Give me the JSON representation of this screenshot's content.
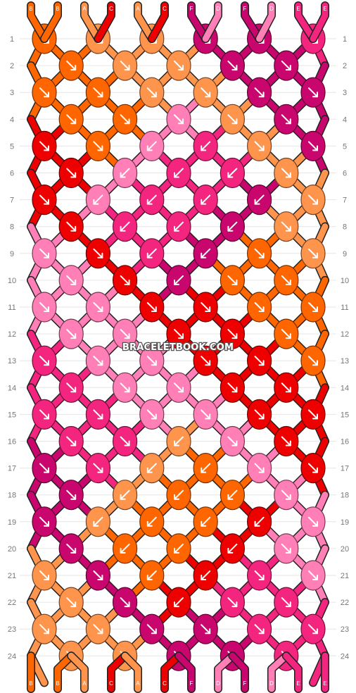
{
  "colors": {
    "B": "#ff6600",
    "A": "#ff944d",
    "C": "#ee0000",
    "D": "#ff7fb6",
    "E": "#f4257f",
    "F": "#c8066d"
  },
  "strands_top": [
    "B",
    "B",
    "A",
    "C",
    "A",
    "C",
    "F",
    "D",
    "F",
    "D",
    "E",
    "E"
  ],
  "strands_bottom": [
    "B",
    "B",
    "A",
    "C",
    "A",
    "C",
    "F",
    "D",
    "F",
    "D",
    "E",
    "E"
  ],
  "row_numbers": [
    "1",
    "2",
    "3",
    "4",
    "5",
    "6",
    "7",
    "8",
    "9",
    "10",
    "11",
    "12",
    "13",
    "14",
    "15",
    "16",
    "17",
    "18",
    "19",
    "20",
    "21",
    "22",
    "23",
    "24"
  ],
  "watermark": "BRACELETBOOK.COM",
  "knots": [
    [
      "B",
      "A",
      "A",
      "F",
      "F",
      "E"
    ],
    [
      "B",
      "A",
      "A",
      "F",
      "F"
    ],
    [
      "B",
      "B",
      "A",
      "A",
      "F",
      "F"
    ],
    [
      "B",
      "B",
      "D",
      "A",
      "F"
    ],
    [
      "C",
      "B",
      "D",
      "E",
      "A",
      "F"
    ],
    [
      "C",
      "D",
      "E",
      "E",
      "A"
    ],
    [
      "C",
      "D",
      "E",
      "E",
      "F",
      "A"
    ],
    [
      "C",
      "E",
      "E",
      "F",
      "A"
    ],
    [
      "D",
      "C",
      "E",
      "F",
      "B",
      "A"
    ],
    [
      "D",
      "C",
      "F",
      "B",
      "B"
    ],
    [
      "D",
      "D",
      "C",
      "C",
      "B",
      "B"
    ],
    [
      "D",
      "D",
      "C",
      "C",
      "B"
    ],
    [
      "E",
      "D",
      "D",
      "C",
      "C",
      "B"
    ],
    [
      "E",
      "D",
      "D",
      "C",
      "C"
    ],
    [
      "E",
      "E",
      "D",
      "D",
      "C",
      "C"
    ],
    [
      "E",
      "E",
      "A",
      "D",
      "C"
    ],
    [
      "F",
      "E",
      "A",
      "B",
      "D",
      "C"
    ],
    [
      "F",
      "A",
      "B",
      "B",
      "D"
    ],
    [
      "F",
      "A",
      "B",
      "B",
      "C",
      "D"
    ],
    [
      "F",
      "B",
      "B",
      "C",
      "D"
    ],
    [
      "A",
      "F",
      "B",
      "C",
      "E",
      "D"
    ],
    [
      "A",
      "F",
      "C",
      "E",
      "E"
    ],
    [
      "A",
      "A",
      "F",
      "F",
      "E",
      "E"
    ],
    [
      "A",
      "A",
      "F",
      "F",
      "E"
    ]
  ],
  "arrows": [
    [
      "se",
      "se",
      "se",
      "se",
      "se",
      "se"
    ],
    [
      "se",
      "se",
      "se",
      "se",
      "se"
    ],
    [
      "se",
      "se",
      "se",
      "se",
      "se",
      "se"
    ],
    [
      "se",
      "se",
      "se",
      "se",
      "se"
    ],
    [
      "se",
      "se",
      "sw",
      "sw",
      "se",
      "se"
    ],
    [
      "se",
      "sw",
      "sw",
      "sw",
      "se"
    ],
    [
      "se",
      "sw",
      "sw",
      "sw",
      "sw",
      "se"
    ],
    [
      "se",
      "sw",
      "sw",
      "sw",
      "se"
    ],
    [
      "se",
      "se",
      "sw",
      "sw",
      "se",
      "se"
    ],
    [
      "se",
      "se",
      "sw",
      "se",
      "se"
    ],
    [
      "se",
      "se",
      "se",
      "se",
      "se",
      "se"
    ],
    [
      "se",
      "se",
      "se",
      "se",
      "se"
    ],
    [
      "se",
      "se",
      "se",
      "se",
      "se",
      "se"
    ],
    [
      "se",
      "se",
      "se",
      "se",
      "se"
    ],
    [
      "se",
      "se",
      "se",
      "se",
      "se",
      "se"
    ],
    [
      "se",
      "se",
      "sw",
      "se",
      "se"
    ],
    [
      "se",
      "se",
      "sw",
      "sw",
      "se",
      "se"
    ],
    [
      "se",
      "sw",
      "sw",
      "sw",
      "se"
    ],
    [
      "se",
      "sw",
      "sw",
      "sw",
      "sw",
      "se"
    ],
    [
      "se",
      "sw",
      "sw",
      "sw",
      "se"
    ],
    [
      "se",
      "se",
      "sw",
      "sw",
      "se",
      "se"
    ],
    [
      "se",
      "se",
      "sw",
      "se",
      "se"
    ],
    [
      "se",
      "se",
      "se",
      "se",
      "se",
      "se"
    ],
    [
      "se",
      "se",
      "se",
      "se",
      "se"
    ]
  ]
}
